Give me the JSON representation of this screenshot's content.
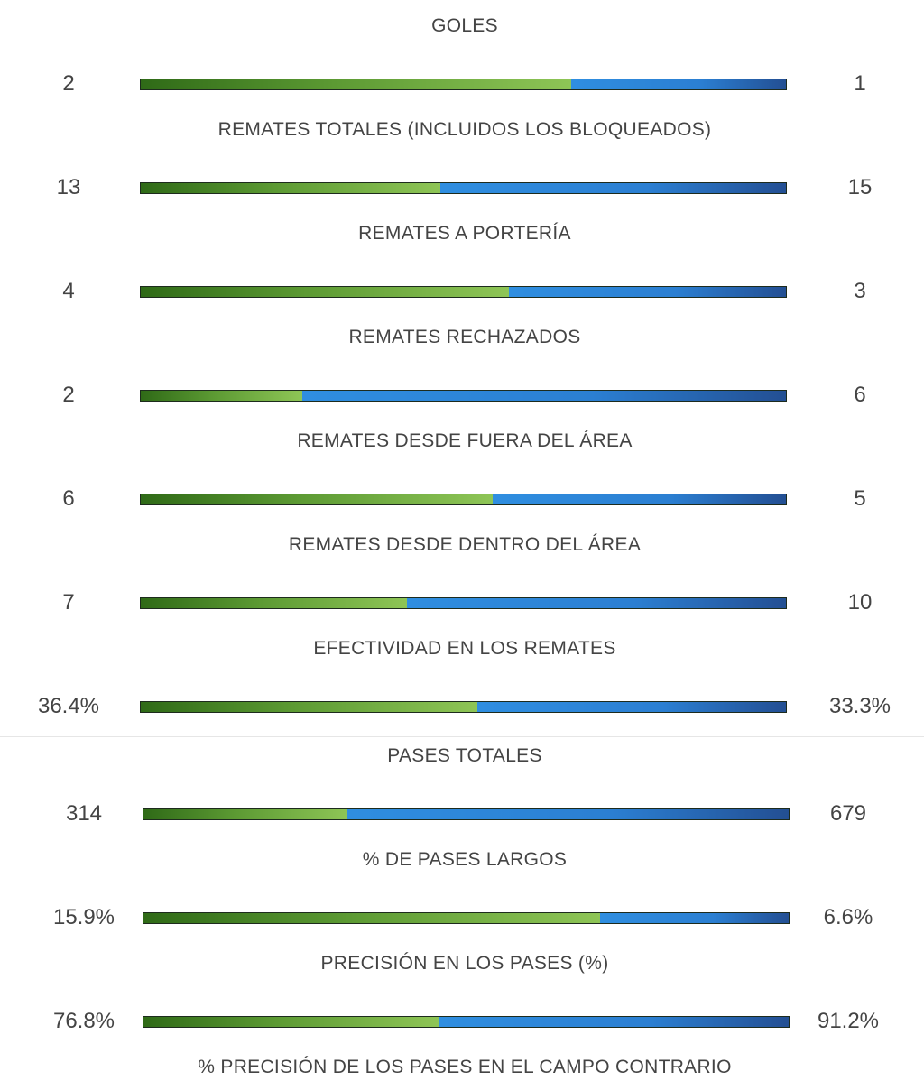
{
  "chart_data": {
    "type": "bar",
    "subtype": "stacked-comparison",
    "colors": {
      "home": "#6fae3e",
      "away": "#2b7fd2"
    },
    "groups": [
      {
        "rows": [
          {
            "label": "GOLES",
            "home": 2,
            "away": 1,
            "home_text": "2",
            "away_text": "1",
            "home_share": 0.667
          },
          {
            "label": "REMATES TOTALES (INCLUIDOS LOS BLOQUEADOS)",
            "home": 13,
            "away": 15,
            "home_text": "13",
            "away_text": "15",
            "home_share": 0.464
          },
          {
            "label": "REMATES A PORTERÍA",
            "home": 4,
            "away": 3,
            "home_text": "4",
            "away_text": "3",
            "home_share": 0.571
          },
          {
            "label": "REMATES RECHAZADOS",
            "home": 2,
            "away": 6,
            "home_text": "2",
            "away_text": "6",
            "home_share": 0.25
          },
          {
            "label": "REMATES DESDE FUERA DEL ÁREA",
            "home": 6,
            "away": 5,
            "home_text": "6",
            "away_text": "5",
            "home_share": 0.545
          },
          {
            "label": "REMATES DESDE DENTRO DEL ÁREA",
            "home": 7,
            "away": 10,
            "home_text": "7",
            "away_text": "10",
            "home_share": 0.412
          },
          {
            "label": "EFECTIVIDAD EN LOS REMATES",
            "home": 36.4,
            "away": 33.3,
            "home_text": "36.4%",
            "away_text": "33.3%",
            "home_share": 0.522
          }
        ]
      },
      {
        "rows": [
          {
            "label": "PASES TOTALES",
            "home": 314,
            "away": 679,
            "home_text": "314",
            "away_text": "679",
            "home_share": 0.316
          },
          {
            "label": "% DE PASES LARGOS",
            "home": 15.9,
            "away": 6.6,
            "home_text": "15.9%",
            "away_text": "6.6%",
            "home_share": 0.707
          },
          {
            "label": "PRECISIÓN EN LOS PASES (%)",
            "home": 76.8,
            "away": 91.2,
            "home_text": "76.8%",
            "away_text": "91.2%",
            "home_share": 0.457
          },
          {
            "label": "% PRECISIÓN DE LOS PASES EN EL CAMPO CONTRARIO",
            "home": null,
            "away": null,
            "home_text": null,
            "away_text": null,
            "home_share": null
          }
        ]
      }
    ]
  }
}
